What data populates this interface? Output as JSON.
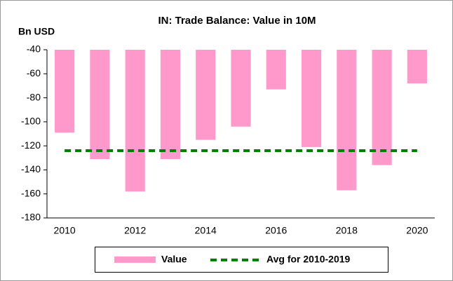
{
  "chart_data": {
    "type": "bar",
    "title": "IN: Trade Balance: Value in 10M",
    "y_label": "Bn USD",
    "categories": [
      "2010",
      null,
      "2012",
      null,
      "2014",
      null,
      "2016",
      null,
      "2018",
      null,
      "2020"
    ],
    "series": [
      {
        "name": "Value",
        "color": "#ff99cc",
        "values": [
          -109,
          -131,
          -158,
          -131,
          -115,
          -104,
          -73,
          -121,
          -157,
          -136,
          -68
        ]
      }
    ],
    "average": {
      "name": "Avg for 2010-2019",
      "color": "#008000",
      "value": -124
    },
    "ylim": [
      -180,
      -40
    ],
    "yticks": [
      -180,
      -160,
      -140,
      -120,
      -100,
      -80,
      -60,
      -40
    ],
    "grid": false
  }
}
